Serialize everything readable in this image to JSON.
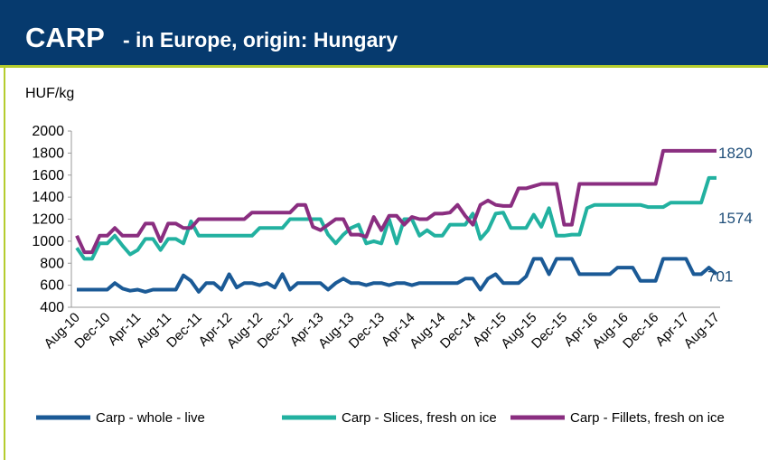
{
  "chart_data": {
    "type": "line",
    "title": "CARP",
    "subtitle": "- in Europe, origin: Hungary",
    "y_label": "HUF/kg",
    "categories": [
      "Aug-10",
      null,
      null,
      null,
      "Dec-10",
      null,
      null,
      null,
      "Apr-11",
      null,
      null,
      null,
      "Aug-11",
      null,
      null,
      null,
      "Dec-11",
      null,
      null,
      null,
      "Apr-12",
      null,
      null,
      null,
      "Aug-12",
      null,
      null,
      null,
      "Dec-12",
      null,
      null,
      null,
      "Apr-13",
      null,
      null,
      null,
      "Aug-13",
      null,
      null,
      null,
      "Dec-13",
      null,
      null,
      null,
      "Apr-14",
      null,
      null,
      null,
      "Aug-14",
      null,
      null,
      null,
      "Dec-14",
      null,
      null,
      null,
      "Apr-15",
      null,
      null,
      null,
      "Aug-15",
      null,
      null,
      null,
      "Dec-15",
      null,
      null,
      null,
      "Apr-16",
      null,
      null,
      null,
      "Aug-16",
      null,
      null,
      null,
      "Dec-16",
      null,
      null,
      null,
      "Apr-17",
      null,
      null,
      null,
      "Aug-17"
    ],
    "series": [
      {
        "name": "Carp - whole - live",
        "color": "#1b5a96",
        "values": [
          560,
          560,
          560,
          560,
          560,
          620,
          570,
          550,
          560,
          540,
          560,
          560,
          560,
          560,
          690,
          640,
          540,
          620,
          620,
          560,
          700,
          580,
          620,
          620,
          600,
          620,
          580,
          700,
          560,
          620,
          620,
          620,
          620,
          560,
          620,
          660,
          620,
          620,
          600,
          620,
          620,
          600,
          620,
          620,
          600,
          620,
          620,
          620,
          620,
          620,
          620,
          660,
          660,
          560,
          660,
          700,
          620,
          620,
          620,
          680,
          840,
          840,
          700,
          840,
          840,
          840,
          700,
          700,
          700,
          700,
          700,
          760,
          760,
          760,
          640,
          640,
          640,
          840,
          840,
          840,
          840,
          700,
          700,
          760,
          701
        ]
      },
      {
        "name": "Carp - Slices, fresh on ice",
        "color": "#22b1a0",
        "values": [
          940,
          840,
          840,
          980,
          980,
          1050,
          960,
          880,
          920,
          1020,
          1020,
          920,
          1020,
          1020,
          980,
          1180,
          1050,
          1050,
          1050,
          1050,
          1050,
          1050,
          1050,
          1050,
          1120,
          1120,
          1120,
          1120,
          1200,
          1200,
          1200,
          1200,
          1200,
          1060,
          980,
          1060,
          1120,
          1150,
          980,
          1000,
          980,
          1200,
          980,
          1200,
          1200,
          1050,
          1100,
          1050,
          1050,
          1150,
          1150,
          1150,
          1250,
          1020,
          1100,
          1250,
          1260,
          1120,
          1120,
          1120,
          1240,
          1130,
          1300,
          1050,
          1050,
          1060,
          1060,
          1300,
          1330,
          1330,
          1330,
          1330,
          1330,
          1330,
          1330,
          1310,
          1310,
          1310,
          1350,
          1350,
          1350,
          1350,
          1350,
          1574,
          1574
        ]
      },
      {
        "name": "Carp - Fillets, fresh on ice",
        "color": "#8a2e80",
        "values": [
          1050,
          900,
          900,
          1050,
          1050,
          1120,
          1050,
          1050,
          1050,
          1160,
          1160,
          1000,
          1160,
          1160,
          1120,
          1120,
          1200,
          1200,
          1200,
          1200,
          1200,
          1200,
          1200,
          1260,
          1260,
          1260,
          1260,
          1260,
          1260,
          1330,
          1330,
          1130,
          1100,
          1150,
          1200,
          1200,
          1060,
          1060,
          1040,
          1220,
          1100,
          1230,
          1230,
          1150,
          1220,
          1200,
          1200,
          1250,
          1250,
          1260,
          1330,
          1230,
          1150,
          1330,
          1370,
          1330,
          1320,
          1320,
          1480,
          1480,
          1500,
          1520,
          1520,
          1520,
          1150,
          1150,
          1520,
          1520,
          1520,
          1520,
          1520,
          1520,
          1520,
          1520,
          1520,
          1520,
          1520,
          1820,
          1820,
          1820,
          1820,
          1820,
          1820,
          1820,
          1820
        ]
      }
    ],
    "ylim": [
      400,
      2000
    ],
    "yticks": [
      400,
      600,
      800,
      1000,
      1200,
      1400,
      1600,
      1800,
      2000
    ],
    "grid": false,
    "legend": "bottom"
  }
}
